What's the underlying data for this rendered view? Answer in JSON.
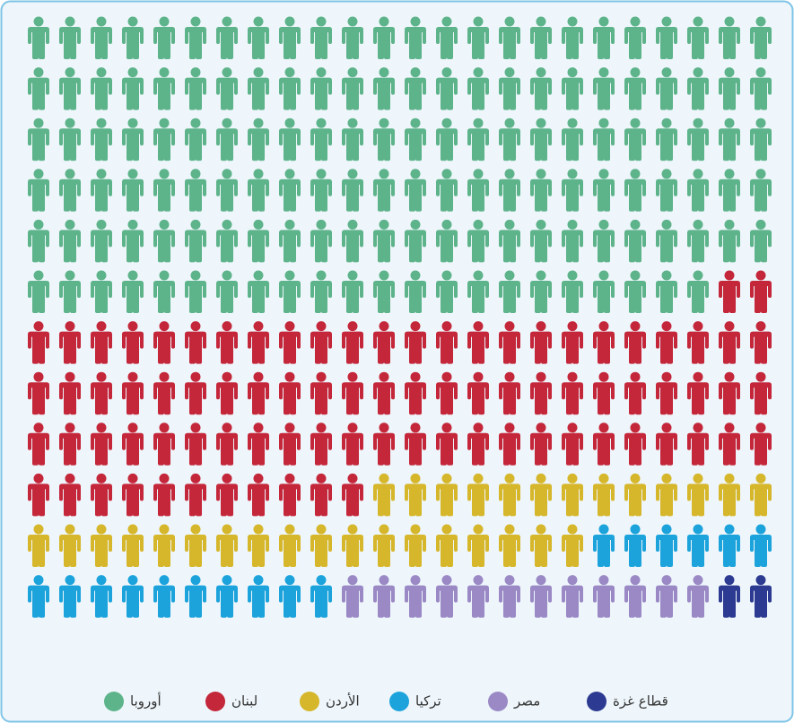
{
  "chart_data": {
    "type": "pictograph",
    "columns": 24,
    "series": [
      {
        "name": "أوروبا",
        "color": "#5db38a",
        "values": 142
      },
      {
        "name": "لبنان",
        "color": "#c4263a",
        "values": 85
      },
      {
        "name": "الأردن",
        "color": "#d6b62a",
        "values": 31
      },
      {
        "name": "تركيا",
        "color": "#1ca3dc",
        "values": 16
      },
      {
        "name": "مصر",
        "color": "#9a89c5",
        "values": 12
      },
      {
        "name": "قطاع غزة",
        "color": "#2c3a91",
        "values": 2
      }
    ]
  }
}
